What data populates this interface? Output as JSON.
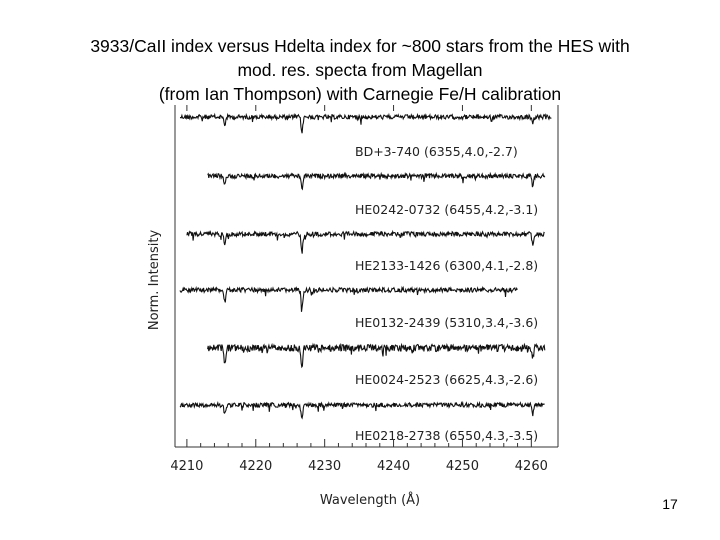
{
  "slide": {
    "title_lines": [
      "3933/CaII index versus Hdelta index for ~800 stars from the HES with",
      "mod. res. specta from Magellan",
      "(from Ian Thompson)  with Carnegie Fe/H calibration"
    ],
    "page_number": "17"
  },
  "chart_data": {
    "type": "line",
    "title": "",
    "xlabel": "Wavelength (Å)",
    "ylabel": "Norm. Intensity",
    "xlim": [
      4209,
      4263
    ],
    "xticks": [
      4210,
      4220,
      4230,
      4240,
      4250,
      4260
    ],
    "grid": false,
    "line_color": "#111111",
    "absorption_lines": [
      4215.5,
      4226.7,
      4260.2
    ],
    "series": [
      {
        "name": "BD+3-740 (6355,4.0,-2.7)",
        "x_range": [
          4209,
          4263
        ],
        "depths": [
          0.4,
          0.8,
          0.4
        ]
      },
      {
        "name": "HE0242-0732 (6455,4.2,-3.1)",
        "x_range": [
          4213,
          4262
        ],
        "depths": [
          0.5,
          0.7,
          0.5
        ]
      },
      {
        "name": "HE2133-1426 (6300,4.1,-2.8)",
        "x_range": [
          4210,
          4262
        ],
        "depths": [
          0.5,
          1.0,
          0.5
        ]
      },
      {
        "name": "HE0132-2439 (5310,3.4,-3.6)",
        "x_range": [
          4209,
          4258
        ],
        "depths": [
          0.6,
          1.0,
          0.6
        ]
      },
      {
        "name": "HE0024-2523 (6625,4.3,-2.6)",
        "x_range": [
          4213,
          4262
        ],
        "depths": [
          0.8,
          1.0,
          0.5
        ]
      },
      {
        "name": "HE0218-2738 (6550,4.3,-3.5)",
        "x_range": [
          4209,
          4262
        ],
        "depths": [
          0.5,
          0.8,
          0.5
        ]
      }
    ]
  }
}
